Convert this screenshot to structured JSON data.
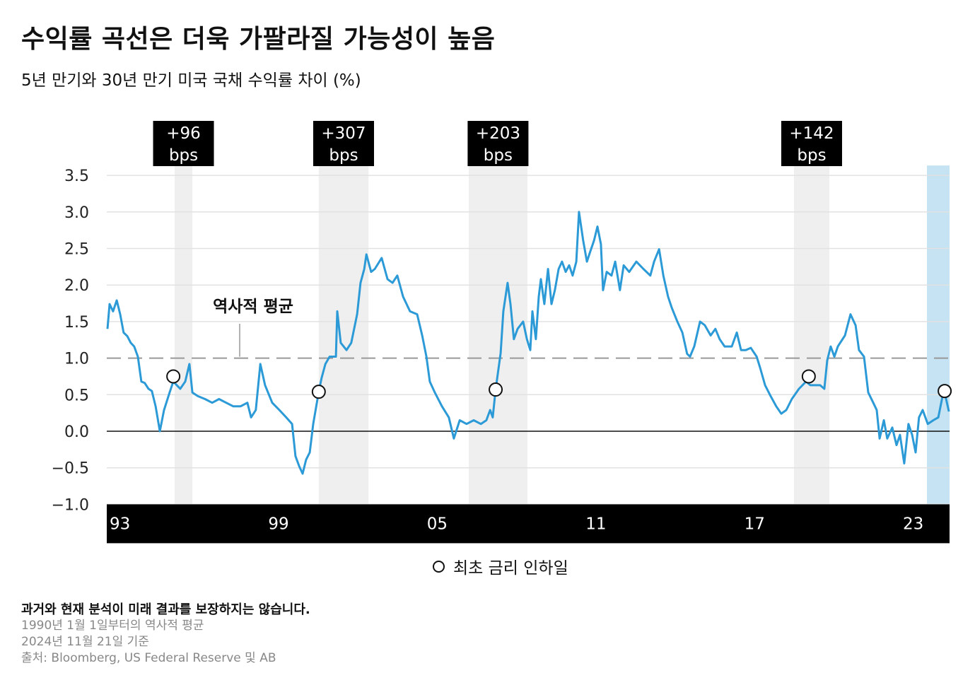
{
  "title": "수익률 곡선은 더욱 가팔라질 가능성이 높음",
  "subtitle": "5년 만기와 30년 만기 미국 국채 수익률 차이 (%)",
  "legend": {
    "marker_label": "최초 금리 인하일"
  },
  "notes": {
    "disclaimer": "과거와 현재 분석이 미래 결과를 보장하지는 않습니다.",
    "line1": "1990년 1월 1일부터의 역사적 평균",
    "line2": "2024년 11월 21일 기준",
    "source": "출처: Bloomberg, US Federal Reserve 및 AB"
  },
  "chart_data": {
    "type": "line",
    "title": "수익률 곡선은 더욱 가팔라질 가능성이 높음",
    "ylim": [
      -1.0,
      3.5
    ],
    "xlim": [
      1992.9,
      2024.8
    ],
    "y_ticks": [
      "3.5",
      "3.0",
      "2.5",
      "2.0",
      "1.5",
      "1.0",
      "0.5",
      "0.0",
      "−0.5",
      "−1.0"
    ],
    "y_tick_values": [
      3.5,
      3.0,
      2.5,
      2.0,
      1.5,
      1.0,
      0.5,
      0.0,
      -0.5,
      -1.0
    ],
    "x_ticks": [
      "93",
      "99",
      "05",
      "11",
      "17",
      "23"
    ],
    "x_tick_values": [
      1993,
      1999,
      2005,
      2011,
      2017,
      2023
    ],
    "grid": true,
    "colors": {
      "line": "#2b9ad6",
      "shade": "#efefef",
      "current_shade": "#c5e3f3",
      "average": "#999999",
      "axis_band": "#000000"
    },
    "historical_average": {
      "label": "역사적 평균",
      "value": 1.0
    },
    "steepening_periods": [
      {
        "start": 1995.46,
        "end": 1996.13,
        "label_top": "+96",
        "label_bottom": "bps"
      },
      {
        "start": 2000.91,
        "end": 2002.79,
        "label_top": "+307",
        "label_bottom": "bps"
      },
      {
        "start": 2006.58,
        "end": 2008.8,
        "label_top": "+203",
        "label_bottom": "bps"
      },
      {
        "start": 2018.88,
        "end": 2020.22,
        "label_top": "+142",
        "label_bottom": "bps"
      }
    ],
    "current_period": {
      "start": 2023.91,
      "end": 2024.8
    },
    "first_rate_cuts": [
      {
        "x": 1995.41,
        "y": 0.75
      },
      {
        "x": 2000.91,
        "y": 0.54
      },
      {
        "x": 2007.6,
        "y": 0.57
      },
      {
        "x": 2019.44,
        "y": 0.75
      },
      {
        "x": 2024.58,
        "y": 0.55
      }
    ],
    "series": [
      {
        "x": [
          1992.92,
          1993.0,
          1993.13,
          1993.27,
          1993.4,
          1993.53,
          1993.67,
          1993.8,
          1993.93,
          1994.07,
          1994.2,
          1994.33,
          1994.47,
          1994.6,
          1994.74,
          1994.9,
          1995.06,
          1995.27,
          1995.41,
          1995.67,
          1995.86,
          1996.02,
          1996.13,
          1996.34,
          1996.61,
          1996.88,
          1997.14,
          1997.41,
          1997.68,
          1997.95,
          1998.21,
          1998.35,
          1998.53,
          1998.7,
          1998.88,
          1999.15,
          1999.42,
          1999.68,
          1999.9,
          2000.03,
          2000.17,
          2000.3,
          2000.43,
          2000.57,
          2000.7,
          2000.91,
          2001.02,
          2001.16,
          2001.32,
          2001.56,
          2001.61,
          2001.74,
          2001.96,
          2002.14,
          2002.36,
          2002.49,
          2002.63,
          2002.71,
          2002.89,
          2003.03,
          2003.29,
          2003.51,
          2003.7,
          2003.88,
          2004.1,
          2004.36,
          2004.63,
          2004.82,
          2004.98,
          2005.11,
          2005.3,
          2005.57,
          2005.83,
          2006.02,
          2006.24,
          2006.5,
          2006.77,
          2007.04,
          2007.25,
          2007.39,
          2007.49,
          2007.6,
          2007.79,
          2007.89,
          2008.05,
          2008.16,
          2008.29,
          2008.43,
          2008.64,
          2008.78,
          2008.91,
          2008.99,
          2009.12,
          2009.23,
          2009.31,
          2009.44,
          2009.58,
          2009.71,
          2009.84,
          2009.98,
          2010.11,
          2010.25,
          2010.38,
          2010.51,
          2010.65,
          2010.75,
          2010.91,
          2011.05,
          2011.18,
          2011.32,
          2011.45,
          2011.58,
          2011.66,
          2011.8,
          2011.98,
          2012.12,
          2012.3,
          2012.44,
          2012.65,
          2012.92,
          2013.19,
          2013.45,
          2013.59,
          2013.78,
          2013.94,
          2014.12,
          2014.26,
          2014.47,
          2014.66,
          2014.84,
          2014.95,
          2015.11,
          2015.33,
          2015.51,
          2015.73,
          2015.91,
          2016.07,
          2016.26,
          2016.53,
          2016.72,
          2016.88,
          2017.06,
          2017.25,
          2017.47,
          2017.6,
          2017.79,
          2018.0,
          2018.21,
          2018.4,
          2018.59,
          2018.8,
          2019.07,
          2019.34,
          2019.5,
          2019.6,
          2019.87,
          2020.03,
          2020.14,
          2020.27,
          2020.41,
          2020.54,
          2020.81,
          2021.02,
          2021.21,
          2021.34,
          2021.53,
          2021.69,
          2021.88,
          2022.01,
          2022.12,
          2022.28,
          2022.41,
          2022.6,
          2022.76,
          2022.89,
          2023.05,
          2023.21,
          2023.35,
          2023.48,
          2023.61,
          2023.75,
          2023.94,
          2024.15,
          2024.34,
          2024.5,
          2024.61,
          2024.74
        ],
        "y": [
          1.4,
          1.74,
          1.64,
          1.79,
          1.6,
          1.35,
          1.3,
          1.21,
          1.16,
          1.02,
          0.68,
          0.66,
          0.58,
          0.55,
          0.34,
          0.0,
          0.29,
          0.53,
          0.68,
          0.58,
          0.68,
          0.92,
          0.53,
          0.48,
          0.44,
          0.39,
          0.44,
          0.39,
          0.34,
          0.34,
          0.39,
          0.19,
          0.29,
          0.92,
          0.63,
          0.39,
          0.29,
          0.19,
          0.1,
          -0.34,
          -0.48,
          -0.58,
          -0.39,
          -0.29,
          0.1,
          0.54,
          0.73,
          0.92,
          1.02,
          1.02,
          1.64,
          1.21,
          1.11,
          1.21,
          1.6,
          2.03,
          2.22,
          2.42,
          2.18,
          2.22,
          2.37,
          2.08,
          2.03,
          2.13,
          1.84,
          1.64,
          1.6,
          1.31,
          1.02,
          0.68,
          0.53,
          0.34,
          0.19,
          -0.1,
          0.15,
          0.1,
          0.15,
          0.1,
          0.15,
          0.29,
          0.19,
          0.57,
          1.07,
          1.64,
          2.03,
          1.74,
          1.26,
          1.4,
          1.5,
          1.26,
          1.11,
          1.64,
          1.26,
          1.84,
          2.08,
          1.74,
          2.22,
          1.74,
          1.93,
          2.22,
          2.32,
          2.18,
          2.27,
          2.13,
          2.32,
          3.0,
          2.61,
          2.32,
          2.46,
          2.61,
          2.8,
          2.56,
          1.93,
          2.18,
          2.13,
          2.32,
          1.93,
          2.27,
          2.18,
          2.32,
          2.22,
          2.13,
          2.32,
          2.49,
          2.13,
          1.84,
          1.69,
          1.5,
          1.35,
          1.06,
          1.02,
          1.16,
          1.5,
          1.45,
          1.31,
          1.4,
          1.26,
          1.16,
          1.16,
          1.35,
          1.11,
          1.11,
          1.14,
          1.02,
          0.87,
          0.63,
          0.48,
          0.34,
          0.24,
          0.29,
          0.44,
          0.58,
          0.68,
          0.63,
          0.63,
          0.63,
          0.58,
          0.97,
          1.16,
          1.02,
          1.16,
          1.31,
          1.6,
          1.45,
          1.11,
          1.02,
          0.53,
          0.39,
          0.29,
          -0.1,
          0.15,
          -0.1,
          0.05,
          -0.19,
          -0.05,
          -0.44,
          0.1,
          -0.05,
          -0.29,
          0.19,
          0.29,
          0.1,
          0.15,
          0.19,
          0.48,
          0.48,
          0.27
        ]
      }
    ]
  }
}
